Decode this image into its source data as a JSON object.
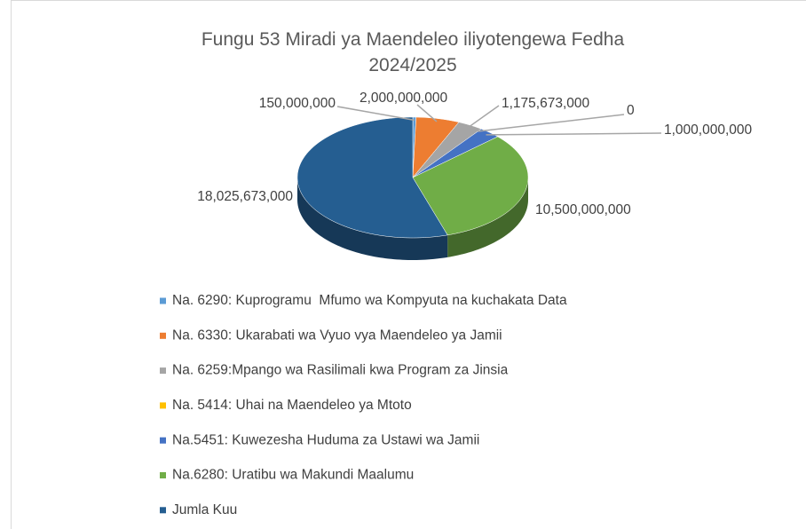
{
  "chart_data": {
    "type": "pie3d",
    "title": "Fungu 53 Miradi ya Maendeleo iliyotengewa Fedha 2024/2025",
    "categories": [
      "Na. 6290: Kuprogramu  Mfumo wa Kompyuta na kuchakata Data",
      "Na. 6330: Ukarabati wa Vyuo vya Maendeleo ya Jamii",
      "Na. 6259:Mpango wa Rasilimali kwa Program za Jinsia",
      "Na. 5414: Uhai na Maendeleo ya Mtoto",
      "Na.5451: Kuwezesha Huduma za Ustawi wa Jamii",
      "Na.6280: Uratibu wa Makundi Maalumu",
      "Jumla Kuu"
    ],
    "values": [
      150000000,
      2000000000,
      1175673000,
      0,
      1000000000,
      10500000000,
      18025673000
    ],
    "value_labels": [
      "150,000,000",
      "2,000,000,000",
      "1,175,673,000",
      "0",
      "1,000,000,000",
      "10,500,000,000",
      "18,025,673,000"
    ],
    "colors": [
      "#5b9bd5",
      "#ed7d31",
      "#a5a5a5",
      "#ffc000",
      "#4472c4",
      "#70ad47",
      "#255e91"
    ],
    "legend": "bottom"
  }
}
